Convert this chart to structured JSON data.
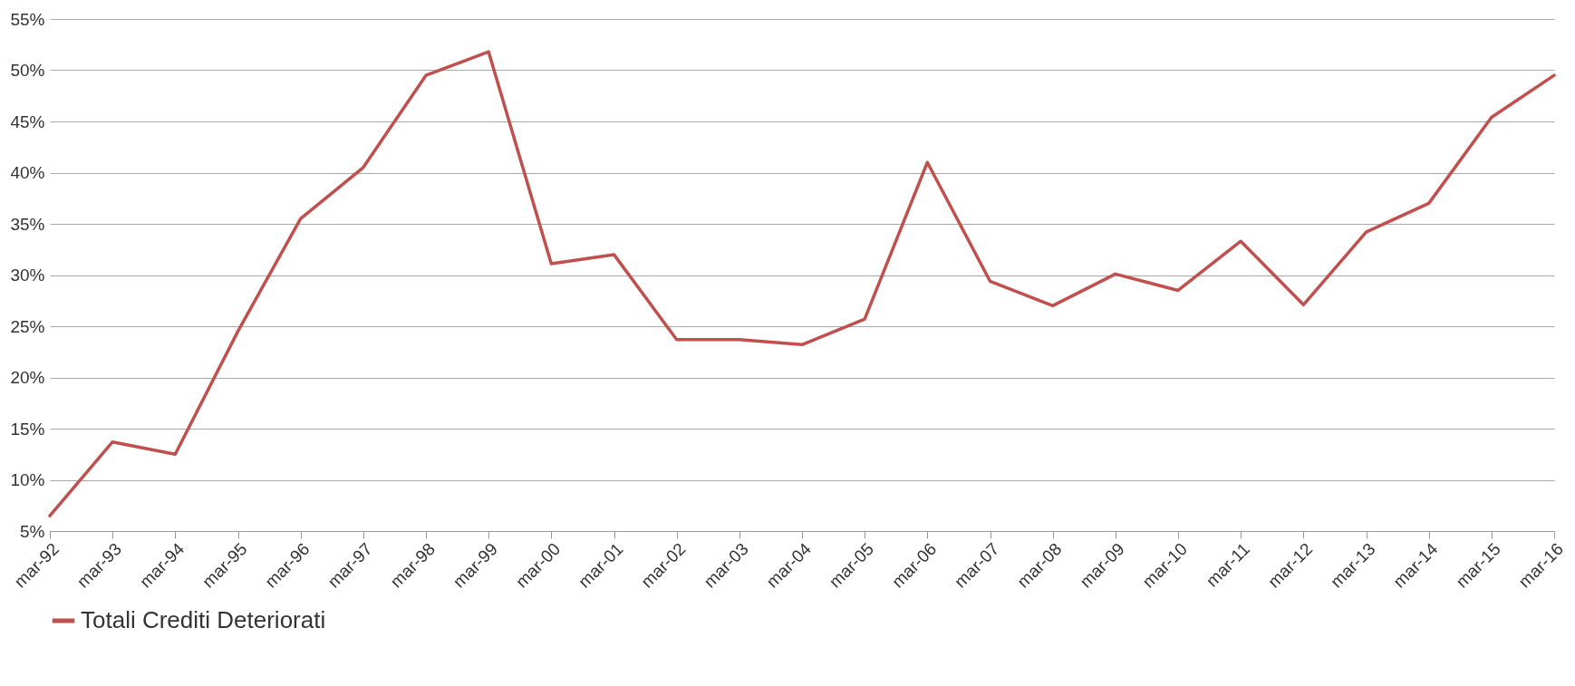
{
  "chart_data": {
    "type": "line",
    "categories": [
      "mar-92",
      "mar-93",
      "mar-94",
      "mar-95",
      "mar-96",
      "mar-97",
      "mar-98",
      "mar-99",
      "mar-00",
      "mar-01",
      "mar-02",
      "mar-03",
      "mar-04",
      "mar-05",
      "mar-06",
      "mar-07",
      "mar-08",
      "mar-09",
      "mar-10",
      "mar-11",
      "mar-12",
      "mar-13",
      "mar-14",
      "mar-15",
      "mar-16"
    ],
    "series": [
      {
        "name": "Totali Crediti Deteriorati",
        "color": "#c0504d",
        "values": [
          6.5,
          13.7,
          12.5,
          24.5,
          35.5,
          40.5,
          49.5,
          51.8,
          31.1,
          32,
          23.7,
          23.7,
          23.2,
          25.7,
          41,
          29.4,
          27,
          30.1,
          28.5,
          33.3,
          27.1,
          34.2,
          37,
          45.4,
          49.5
        ]
      }
    ],
    "ylim": [
      5,
      55
    ],
    "yticks": [
      {
        "value": 5,
        "label": "5%"
      },
      {
        "value": 10,
        "label": "10%"
      },
      {
        "value": 15,
        "label": "15%"
      },
      {
        "value": 20,
        "label": "20%"
      },
      {
        "value": 25,
        "label": "25%"
      },
      {
        "value": 30,
        "label": "30%"
      },
      {
        "value": 35,
        "label": "35%"
      },
      {
        "value": 40,
        "label": "40%"
      },
      {
        "value": 45,
        "label": "45%"
      },
      {
        "value": 50,
        "label": "50%"
      },
      {
        "value": 55,
        "label": "55%"
      }
    ],
    "grid": "y",
    "legend": "bottom",
    "marker": "none",
    "line_style": "solid"
  }
}
